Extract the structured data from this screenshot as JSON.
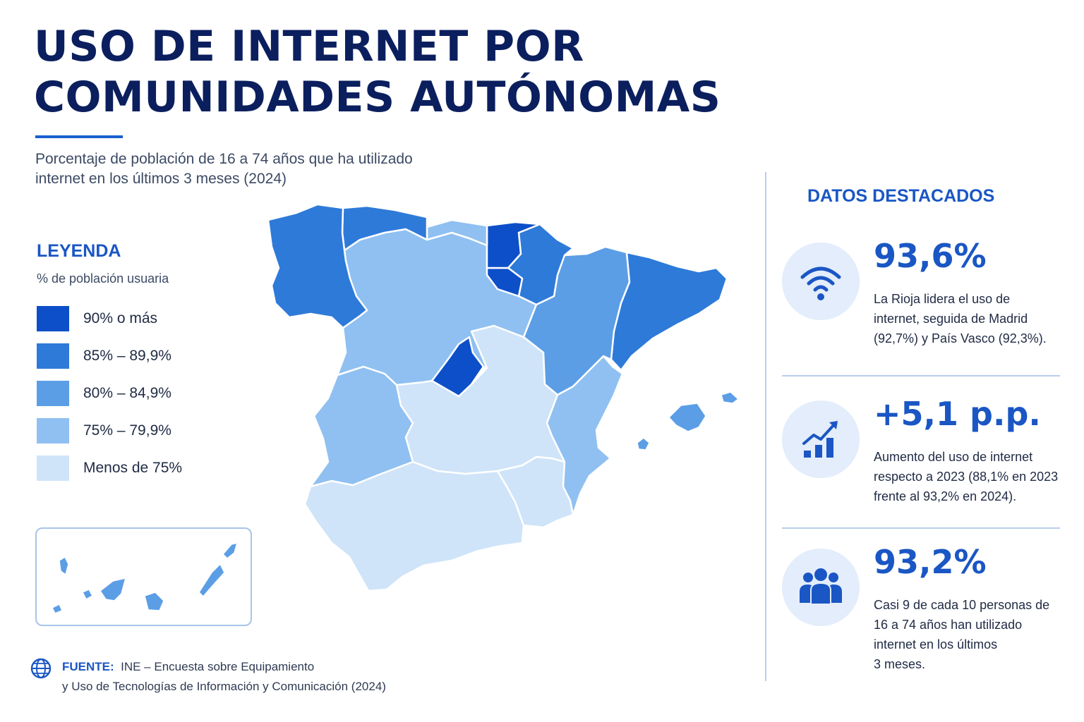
{
  "title": [
    "USO DE INTERNET POR",
    "COMUNIDADES AUTÓNOMAS"
  ],
  "subtitle": [
    "Porcentaje de población de 16 a 74 años que ha utilizado",
    "internet en los últimos 3 meses (2024)"
  ],
  "legend": {
    "title": "LEYENDA",
    "subtitle": "% de población usuaria",
    "items": [
      {
        "label": "90% o más",
        "color": "#0d4fc9"
      },
      {
        "label": "85% – 89,9%",
        "color": "#2e7ad9"
      },
      {
        "label": "80% – 84,9%",
        "color": "#5b9ee6"
      },
      {
        "label": "75% – 79,9%",
        "color": "#8fc0f1"
      },
      {
        "label": "Menos de 75%",
        "color": "#cfe4f9"
      }
    ]
  },
  "map": {
    "regions": [
      {
        "name": "Galicia",
        "class": 1
      },
      {
        "name": "Asturias",
        "class": 1
      },
      {
        "name": "Cantabria",
        "class": 3
      },
      {
        "name": "País Vasco",
        "class": 0
      },
      {
        "name": "Navarra",
        "class": 1
      },
      {
        "name": "La Rioja",
        "class": 0
      },
      {
        "name": "Aragón",
        "class": 2
      },
      {
        "name": "Cataluña",
        "class": 1
      },
      {
        "name": "Castilla y León",
        "class": 3
      },
      {
        "name": "Madrid",
        "class": 0
      },
      {
        "name": "Castilla-La Mancha",
        "class": 4
      },
      {
        "name": "Extremadura",
        "class": 3
      },
      {
        "name": "Comunidad Valenciana",
        "class": 3
      },
      {
        "name": "Murcia",
        "class": 4
      },
      {
        "name": "Andalucía",
        "class": 4
      },
      {
        "name": "Islas Baleares",
        "class": 2
      },
      {
        "name": "Canarias",
        "class": 2
      }
    ]
  },
  "side": {
    "title": "DATOS DESTACADOS",
    "stats": [
      {
        "icon": "wifi-icon",
        "value": "93,6%",
        "desc": [
          "La Rioja lidera el uso de",
          "internet, seguida de Madrid",
          "(92,7%) y País Vasco (92,3%)."
        ]
      },
      {
        "icon": "growth-chart-icon",
        "value": "+5,1 p.p.",
        "desc": [
          "Aumento del uso de internet",
          "respecto a 2023 (88,1% en 2023",
          "frente al 93,2% en 2024)."
        ]
      },
      {
        "icon": "people-icon",
        "value": "93,2%",
        "desc": [
          "Casi 9 de cada 10 personas de",
          "16 a 74 años han utilizado",
          "internet en los últimos",
          "3 meses."
        ]
      }
    ]
  },
  "source": {
    "label": "FUENTE:",
    "text": [
      "INE – Encuesta sobre Equipamiento",
      "y Uso de Tecnologías de Información y Comunicación (2024)"
    ]
  }
}
